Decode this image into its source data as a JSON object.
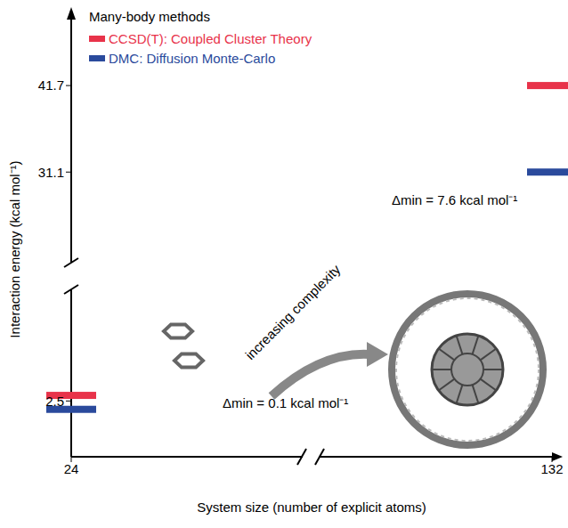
{
  "chart_data": {
    "type": "line",
    "marker": "bar",
    "legend_title": "Many-body methods",
    "legend": "upper left",
    "categories": [
      "24",
      "132"
    ],
    "series": [
      {
        "name": "CCSD(T): Coupled Cluster Theory",
        "color": "#e8334a",
        "values": [
          2.6,
          41.7
        ]
      },
      {
        "name": "DMC: Diffusion Monte-Carlo",
        "color": "#2a4a9c",
        "values": [
          2.35,
          31.1
        ]
      }
    ],
    "ylim": [
      1.5,
      50
    ],
    "y_break": [
      4.5,
      20
    ],
    "yticks": [
      2.5,
      31.1,
      41.7
    ],
    "ylabel": "Interaction energy (kcal mol⁻¹)",
    "xlabel": "System size (number of explicit atoms)",
    "annotations": [
      "Δmin = 0.1 kcal mol⁻¹",
      "Δmin = 7.6 kcal mol⁻¹",
      "increasing complexity"
    ]
  }
}
